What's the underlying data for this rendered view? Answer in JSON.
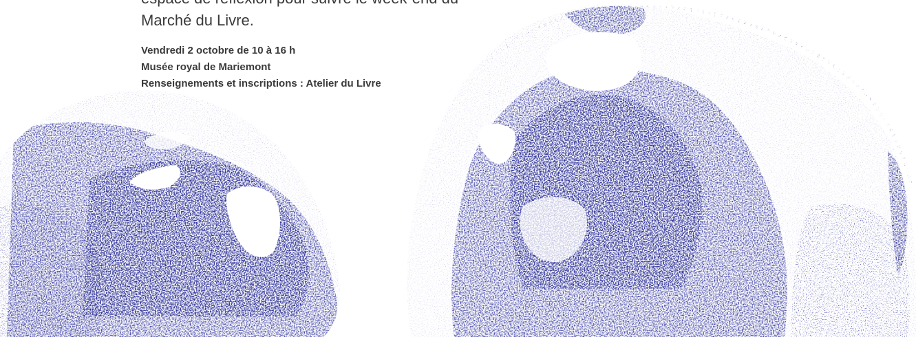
{
  "intro": {
    "line1": "espace de réflexion pour suivre le week-end du",
    "line2": "Marché du Livre."
  },
  "details": {
    "date": "Vendredi 2 octobre de 10 à 16 h",
    "venue": "Musée royal de Mariemont",
    "contact": "Renseignements et inscriptions : Atelier du Livre"
  },
  "colors": {
    "print_ink": "#2b2e9a",
    "paper": "#ffffff",
    "text": "#3a3a3a"
  }
}
